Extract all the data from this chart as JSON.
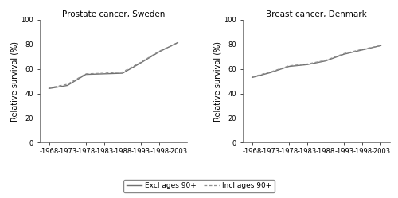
{
  "title_left": "Prostate cancer, Sweden",
  "title_right": "Breast cancer, Denmark",
  "ylabel": "Relative survival (%)",
  "xtick_labels": [
    "-1968",
    "-1973",
    "-1978",
    "-1983",
    "-1988",
    "-1993",
    "-1998",
    "-2003"
  ],
  "xtick_positions": [
    0,
    1,
    2,
    3,
    4,
    5,
    6,
    7
  ],
  "ylim": [
    0,
    100
  ],
  "yticks": [
    0,
    20,
    40,
    60,
    80,
    100
  ],
  "legend_labels": [
    "Excl ages 90+",
    "Incl ages 90+"
  ],
  "prostate_excl": [
    44.0,
    46.5,
    55.5,
    56.0,
    56.5,
    65.0,
    74.0,
    81.5
  ],
  "prostate_incl": [
    44.5,
    47.5,
    56.0,
    56.5,
    57.5,
    65.5,
    74.5,
    81.0
  ],
  "breast_excl": [
    53.0,
    57.0,
    62.0,
    63.5,
    66.5,
    72.0,
    75.5,
    79.0
  ],
  "breast_incl": [
    53.5,
    57.5,
    62.5,
    64.0,
    67.0,
    72.5,
    76.0,
    79.0
  ],
  "line_color_excl": "#707070",
  "line_color_incl": "#909090",
  "background_color": "#ffffff",
  "title_fontsize": 7.5,
  "label_fontsize": 7,
  "tick_fontsize": 6,
  "legend_fontsize": 6.5
}
